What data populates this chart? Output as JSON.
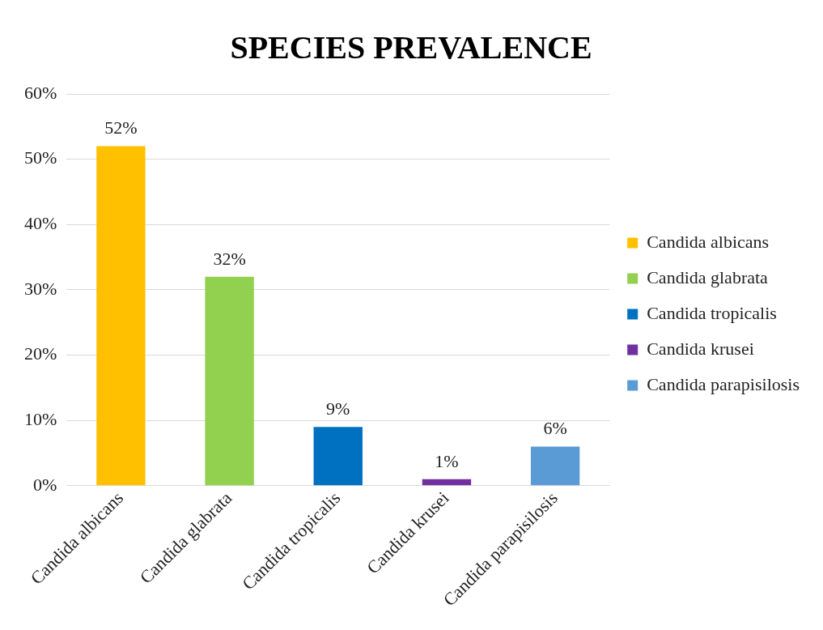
{
  "chart_data": {
    "type": "bar",
    "title": "SPECIES PREVALENCE",
    "categories": [
      "Candida albicans",
      "Candida glabrata",
      "Candida tropicalis",
      "Candida krusei",
      "Candida parapisilosis"
    ],
    "series": [
      {
        "name": "Candida albicans",
        "color": "#ffc000",
        "values": [
          52,
          null,
          null,
          null,
          null
        ],
        "value_labels": [
          "52%",
          null,
          null,
          null,
          null
        ]
      },
      {
        "name": "Candida glabrata",
        "color": "#92d050",
        "values": [
          null,
          32,
          null,
          null,
          null
        ],
        "value_labels": [
          null,
          "32%",
          null,
          null,
          null
        ]
      },
      {
        "name": "Candida tropicalis",
        "color": "#0070c0",
        "values": [
          null,
          null,
          9,
          null,
          null
        ],
        "value_labels": [
          null,
          null,
          "9%",
          null,
          null
        ]
      },
      {
        "name": "Candida krusei",
        "color": "#7030a0",
        "values": [
          null,
          null,
          null,
          1,
          null
        ],
        "value_labels": [
          null,
          null,
          null,
          "1%",
          null
        ]
      },
      {
        "name": "Candida parapisilosis",
        "color": "#5b9bd5",
        "values": [
          null,
          null,
          null,
          null,
          6
        ],
        "value_labels": [
          null,
          null,
          null,
          null,
          "6%"
        ]
      }
    ],
    "ylim": [
      0,
      60
    ],
    "yticks": [
      {
        "value": 0,
        "label": "0%"
      },
      {
        "value": 10,
        "label": "10%"
      },
      {
        "value": 20,
        "label": "20%"
      },
      {
        "value": 30,
        "label": "30%"
      },
      {
        "value": 40,
        "label": "40%"
      },
      {
        "value": 50,
        "label": "50%"
      },
      {
        "value": 60,
        "label": "60%"
      }
    ],
    "grid": "y",
    "legend": "right"
  }
}
